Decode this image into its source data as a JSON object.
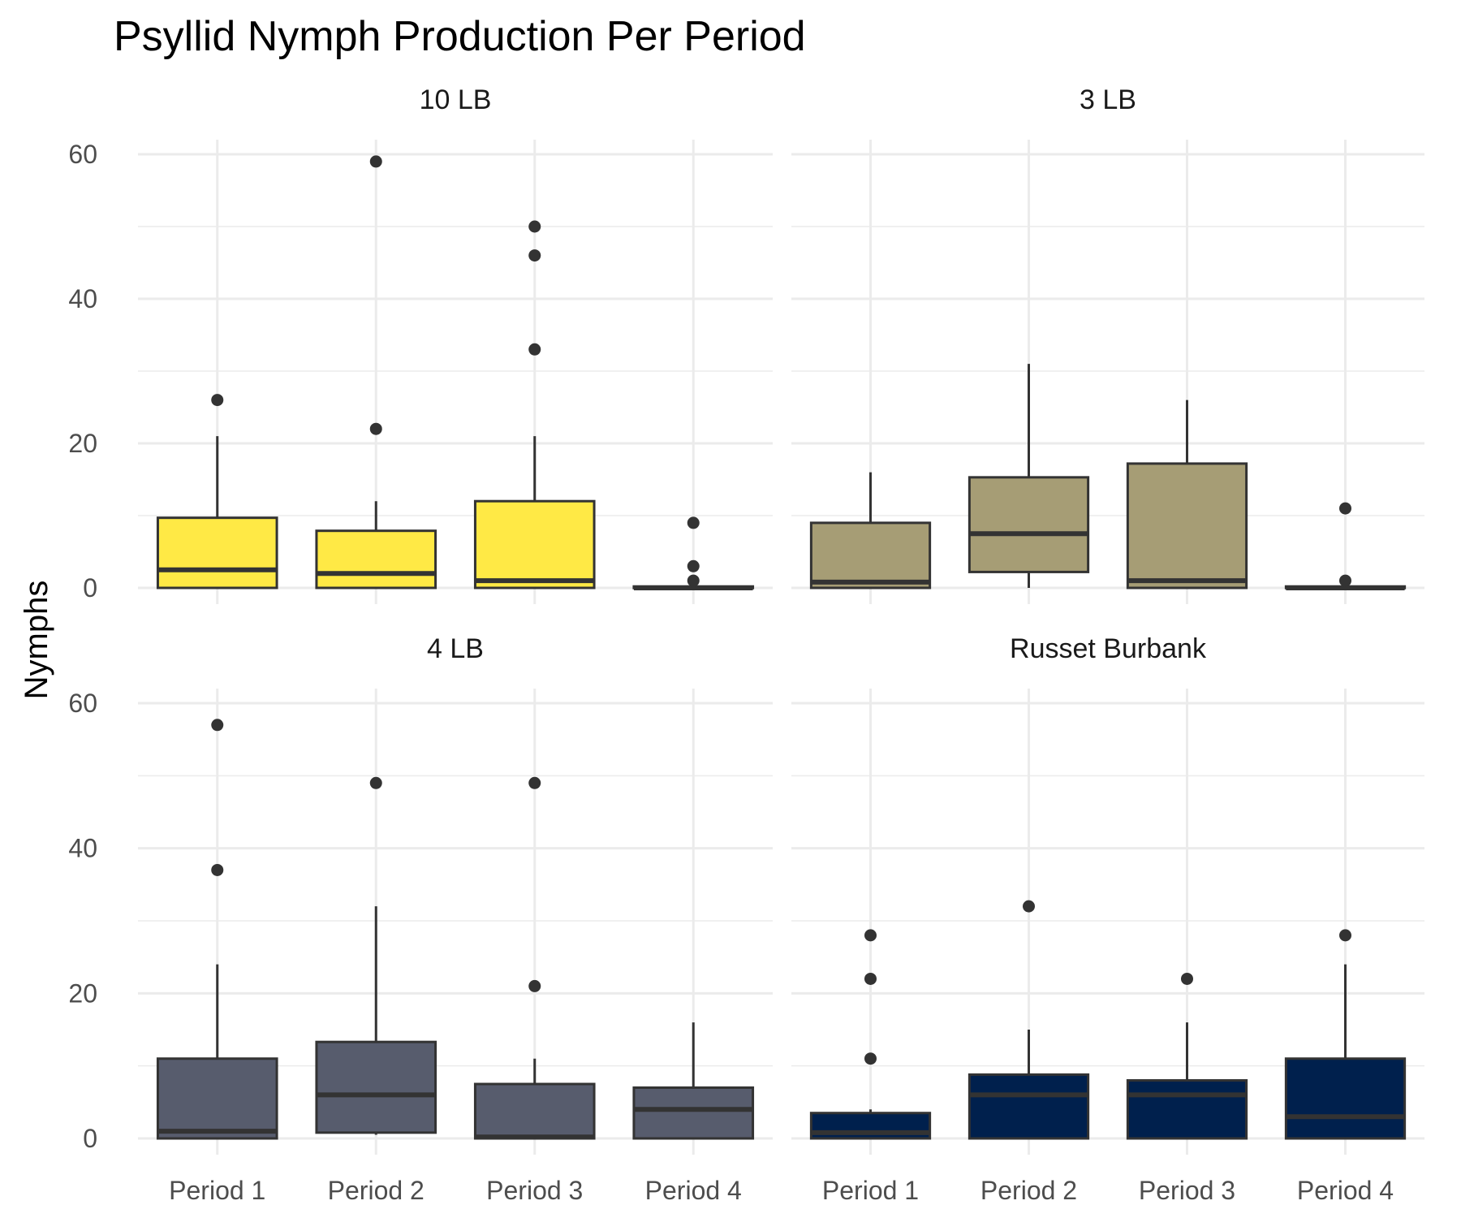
{
  "chart_data": {
    "type": "box",
    "title": "Psyllid Nymph Production Per Period",
    "ylabel": "Nymphs",
    "xlabel": "",
    "ylim": [
      0,
      60
    ],
    "y_ticks": [
      0,
      20,
      40,
      60
    ],
    "categories": [
      "Period 1",
      "Period 2",
      "Period 3",
      "Period 4"
    ],
    "grid": true,
    "legend": "none",
    "panels": [
      {
        "label": "10 LB",
        "color": "#FFE945",
        "boxes": [
          {
            "category": "Period 1",
            "min": 0,
            "q1": 0,
            "median": 2.5,
            "q3": 9.7,
            "max": 21,
            "outliers": [
              26
            ]
          },
          {
            "category": "Period 2",
            "min": 0,
            "q1": 0,
            "median": 2,
            "q3": 7.9,
            "max": 12,
            "outliers": [
              22,
              59
            ]
          },
          {
            "category": "Period 3",
            "min": 0,
            "q1": 0,
            "median": 1,
            "q3": 12,
            "max": 21,
            "outliers": [
              33,
              46,
              50
            ]
          },
          {
            "category": "Period 4",
            "min": 0,
            "q1": 0,
            "median": 0,
            "q3": 0.2,
            "max": 0.2,
            "outliers": [
              1,
              3,
              9
            ]
          }
        ]
      },
      {
        "label": "3 LB",
        "color": "#A69D75",
        "boxes": [
          {
            "category": "Period 1",
            "min": 0,
            "q1": 0,
            "median": 0.8,
            "q3": 9,
            "max": 16,
            "outliers": []
          },
          {
            "category": "Period 2",
            "min": 0,
            "q1": 2.2,
            "median": 7.5,
            "q3": 15.3,
            "max": 31,
            "outliers": []
          },
          {
            "category": "Period 3",
            "min": 0,
            "q1": 0,
            "median": 1,
            "q3": 17.2,
            "max": 26,
            "outliers": []
          },
          {
            "category": "Period 4",
            "min": 0,
            "q1": 0,
            "median": 0,
            "q3": 0.2,
            "max": 0.2,
            "outliers": [
              1,
              11
            ]
          }
        ]
      },
      {
        "label": "4 LB",
        "color": "#575C6D",
        "boxes": [
          {
            "category": "Period 1",
            "min": 0,
            "q1": 0,
            "median": 1,
            "q3": 11,
            "max": 24,
            "outliers": [
              37,
              57
            ]
          },
          {
            "category": "Period 2",
            "min": 0.5,
            "q1": 0.8,
            "median": 6,
            "q3": 13.3,
            "max": 32,
            "outliers": [
              49
            ]
          },
          {
            "category": "Period 3",
            "min": 0,
            "q1": 0,
            "median": 0.2,
            "q3": 7.5,
            "max": 11,
            "outliers": [
              21,
              49
            ]
          },
          {
            "category": "Period 4",
            "min": 0,
            "q1": 0,
            "median": 4,
            "q3": 7,
            "max": 16,
            "outliers": []
          }
        ]
      },
      {
        "label": "Russet Burbank",
        "color": "#00204D",
        "boxes": [
          {
            "category": "Period 1",
            "min": 0,
            "q1": 0,
            "median": 0.8,
            "q3": 3.5,
            "max": 4,
            "outliers": [
              11,
              22,
              28
            ]
          },
          {
            "category": "Period 2",
            "min": 0,
            "q1": 0,
            "median": 6,
            "q3": 8.8,
            "max": 15,
            "outliers": [
              32
            ]
          },
          {
            "category": "Period 3",
            "min": 0,
            "q1": 0,
            "median": 6,
            "q3": 8,
            "max": 16,
            "outliers": [
              22
            ]
          },
          {
            "category": "Period 4",
            "min": 0,
            "q1": 0,
            "median": 3,
            "q3": 11,
            "max": 24,
            "outliers": [
              28
            ]
          }
        ]
      }
    ]
  }
}
